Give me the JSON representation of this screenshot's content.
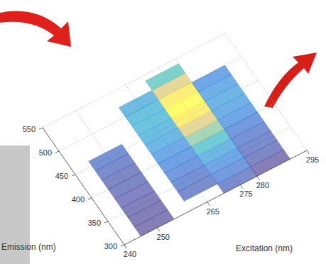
{
  "chart_data": {
    "type": "heatmap",
    "x_label": "Excitation (nm)",
    "y_label": "Emission (nm)",
    "x": [
      250,
      265,
      275,
      285
    ],
    "y": [
      310,
      330,
      350,
      370,
      390,
      410,
      430,
      450,
      470,
      490,
      510,
      530
    ],
    "z": [
      [
        0.15,
        0.15,
        0.16,
        0.17,
        0.18,
        0.18,
        0.2,
        0.22,
        null,
        null,
        null,
        null
      ],
      [
        null,
        0.2,
        0.22,
        0.25,
        0.28,
        0.32,
        0.38,
        0.42,
        0.45,
        0.45,
        0.4,
        null
      ],
      [
        0.2,
        0.25,
        0.3,
        0.38,
        0.5,
        0.65,
        0.8,
        0.95,
        1.0,
        0.95,
        0.8,
        0.55
      ],
      [
        0.15,
        0.18,
        0.2,
        0.22,
        0.25,
        0.3,
        0.35,
        0.38,
        0.35,
        0.3,
        null,
        null
      ]
    ],
    "xlim": [
      240,
      295
    ],
    "xticks": [
      240,
      250,
      265,
      275,
      280,
      295
    ],
    "ylim": [
      300,
      550
    ],
    "yticks": [
      300,
      350,
      400,
      450,
      500,
      550
    ],
    "grid": true
  }
}
